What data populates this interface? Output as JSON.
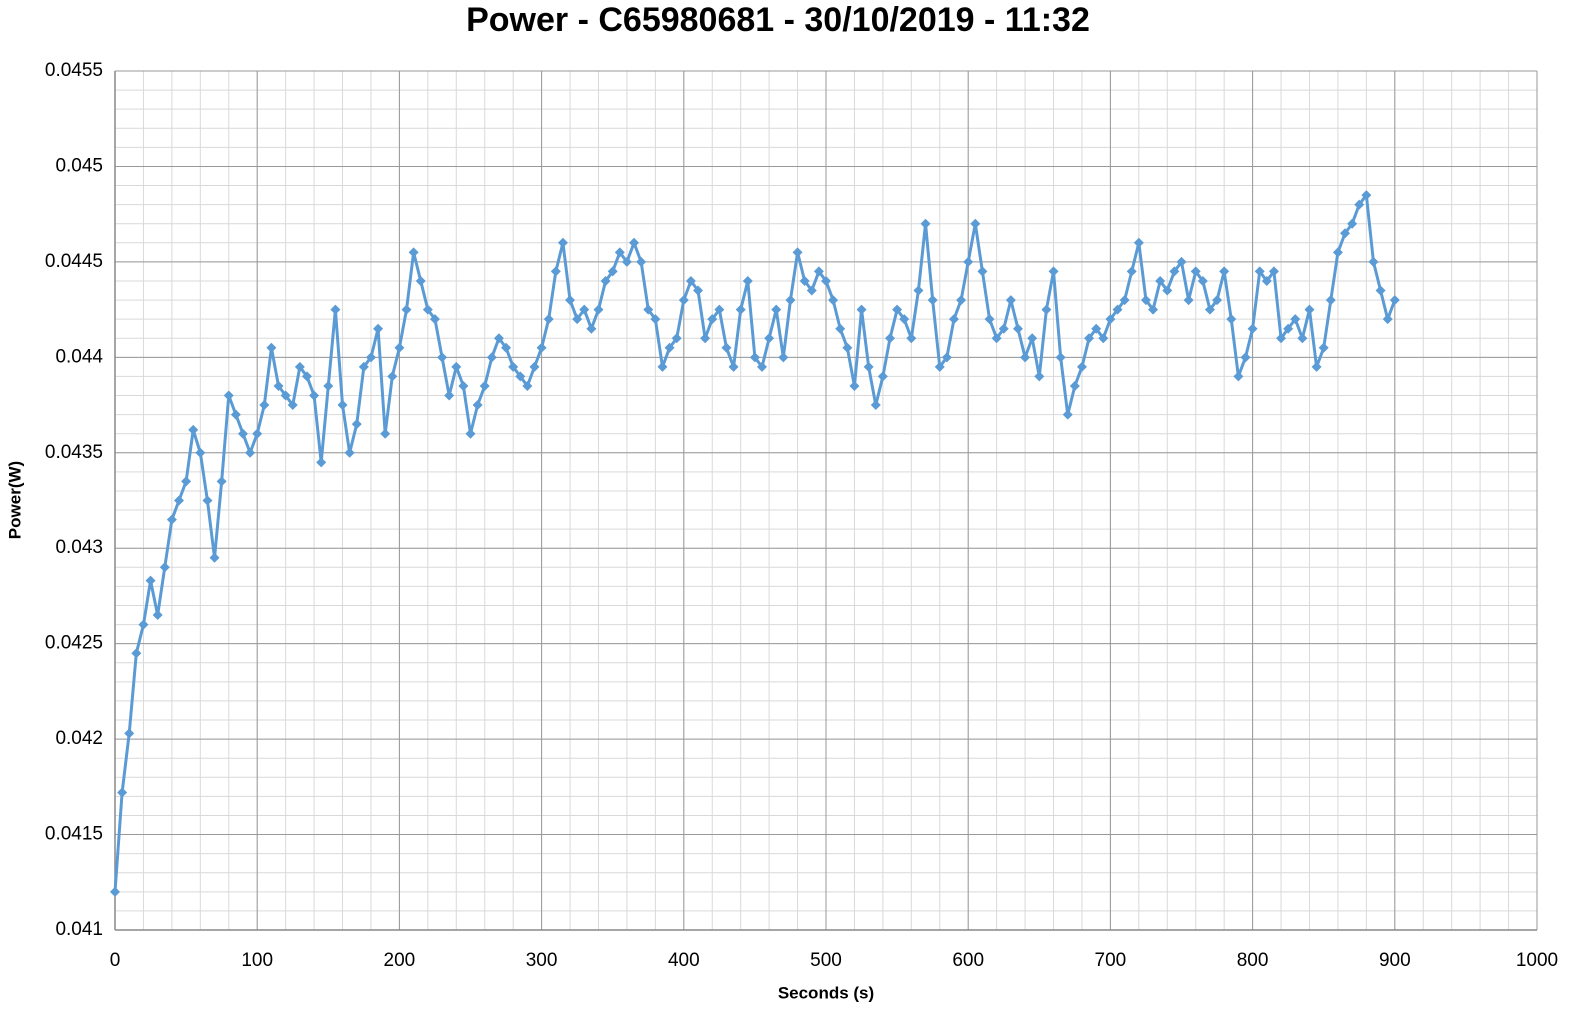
{
  "chart_data": {
    "type": "line",
    "title": "Power - C65980681 - 30/10/2019 - 11:32",
    "x_label": "Seconds (s)",
    "y_label": "Power(W)",
    "x": [
      0,
      5,
      10,
      15,
      20,
      25,
      30,
      35,
      40,
      45,
      50,
      55,
      60,
      65,
      70,
      75,
      80,
      85,
      90,
      95,
      100,
      105,
      110,
      115,
      120,
      125,
      130,
      135,
      140,
      145,
      150,
      155,
      160,
      165,
      170,
      175,
      180,
      185,
      190,
      195,
      200,
      205,
      210,
      215,
      220,
      225,
      230,
      235,
      240,
      245,
      250,
      255,
      260,
      265,
      270,
      275,
      280,
      285,
      290,
      295,
      300,
      305,
      310,
      315,
      320,
      325,
      330,
      335,
      340,
      345,
      350,
      355,
      360,
      365,
      370,
      375,
      380,
      385,
      390,
      395,
      400,
      405,
      410,
      415,
      420,
      425,
      430,
      435,
      440,
      445,
      450,
      455,
      460,
      465,
      470,
      475,
      480,
      485,
      490,
      495,
      500,
      505,
      510,
      515,
      520,
      525,
      530,
      535,
      540,
      545,
      550,
      555,
      560,
      565,
      570,
      575,
      580,
      585,
      590,
      595,
      600,
      605,
      610,
      615,
      620,
      625,
      630,
      635,
      640,
      645,
      650,
      655,
      660,
      665,
      670,
      675,
      680,
      685,
      690,
      695,
      700,
      705,
      710,
      715,
      720,
      725,
      730,
      735,
      740,
      745,
      750,
      755,
      760,
      765,
      770,
      775,
      780,
      785,
      790,
      795,
      800,
      805,
      810,
      815,
      820,
      825,
      830,
      835,
      840,
      845,
      850,
      855,
      860,
      865,
      870,
      875,
      880,
      885,
      890,
      895,
      900
    ],
    "series": [
      {
        "color": "#5b9bd5",
        "values": [
          0.0412,
          0.04172,
          0.04203,
          0.04245,
          0.0426,
          0.04283,
          0.04265,
          0.0429,
          0.04315,
          0.04325,
          0.04335,
          0.04362,
          0.0435,
          0.04325,
          0.04295,
          0.04335,
          0.0438,
          0.0437,
          0.0436,
          0.0435,
          0.0436,
          0.04375,
          0.04405,
          0.04385,
          0.0438,
          0.04375,
          0.04395,
          0.0439,
          0.0438,
          0.04345,
          0.04385,
          0.04425,
          0.04375,
          0.0435,
          0.04365,
          0.04395,
          0.044,
          0.04415,
          0.0436,
          0.0439,
          0.04405,
          0.04425,
          0.04455,
          0.0444,
          0.04425,
          0.0442,
          0.044,
          0.0438,
          0.04395,
          0.04385,
          0.0436,
          0.04375,
          0.04385,
          0.044,
          0.0441,
          0.04405,
          0.04395,
          0.0439,
          0.04385,
          0.04395,
          0.04405,
          0.0442,
          0.04445,
          0.0446,
          0.0443,
          0.0442,
          0.04425,
          0.04415,
          0.04425,
          0.0444,
          0.04445,
          0.04455,
          0.0445,
          0.0446,
          0.0445,
          0.04425,
          0.0442,
          0.04395,
          0.04405,
          0.0441,
          0.0443,
          0.0444,
          0.04435,
          0.0441,
          0.0442,
          0.04425,
          0.04405,
          0.04395,
          0.04425,
          0.0444,
          0.044,
          0.04395,
          0.0441,
          0.04425,
          0.044,
          0.0443,
          0.04455,
          0.0444,
          0.04435,
          0.04445,
          0.0444,
          0.0443,
          0.04415,
          0.04405,
          0.04385,
          0.04425,
          0.04395,
          0.04375,
          0.0439,
          0.0441,
          0.04425,
          0.0442,
          0.0441,
          0.04435,
          0.0447,
          0.0443,
          0.04395,
          0.044,
          0.0442,
          0.0443,
          0.0445,
          0.0447,
          0.04445,
          0.0442,
          0.0441,
          0.04415,
          0.0443,
          0.04415,
          0.044,
          0.0441,
          0.0439,
          0.04425,
          0.04445,
          0.044,
          0.0437,
          0.04385,
          0.04395,
          0.0441,
          0.04415,
          0.0441,
          0.0442,
          0.04425,
          0.0443,
          0.04445,
          0.0446,
          0.0443,
          0.04425,
          0.0444,
          0.04435,
          0.04445,
          0.0445,
          0.0443,
          0.04445,
          0.0444,
          0.04425,
          0.0443,
          0.04445,
          0.0442,
          0.0439,
          0.044,
          0.04415,
          0.04445,
          0.0444,
          0.04445,
          0.0441,
          0.04415,
          0.0442,
          0.0441,
          0.04425,
          0.04395,
          0.04405,
          0.0443,
          0.04455,
          0.04465,
          0.0447,
          0.0448,
          0.04485,
          0.0445,
          0.04435,
          0.0442,
          0.0443
        ]
      }
    ],
    "xlim": [
      0,
      1000
    ],
    "xticks": [
      0,
      100,
      200,
      300,
      400,
      500,
      600,
      700,
      800,
      900,
      1000
    ],
    "ylim": [
      0.041,
      0.0455
    ],
    "yticks": [
      0.041,
      0.0415,
      0.042,
      0.0425,
      0.043,
      0.0435,
      0.044,
      0.0445,
      0.045,
      0.0455
    ],
    "grid": true,
    "minor_grid_step": {
      "x": 20,
      "y": 0.0001
    },
    "marker": "diamond"
  }
}
